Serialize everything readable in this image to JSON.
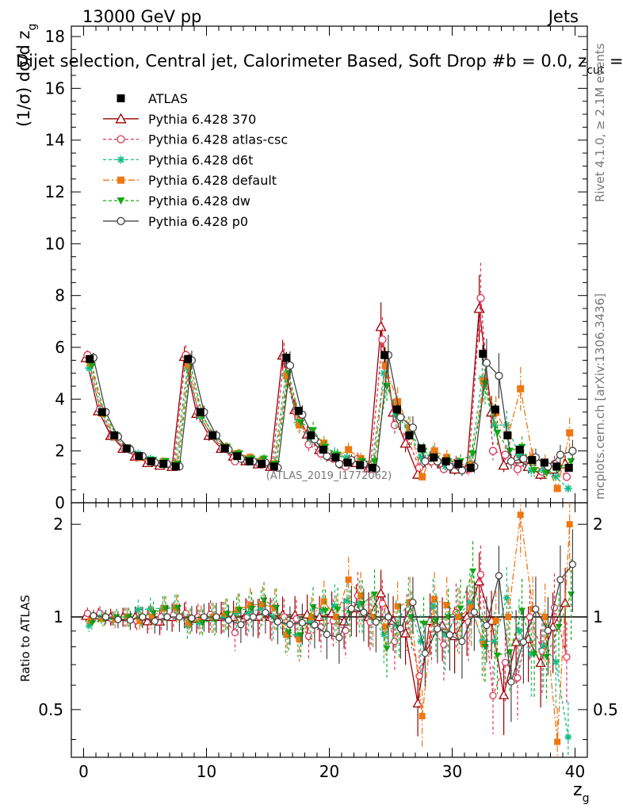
{
  "header": {
    "energy": "13000 GeV pp",
    "category": "Jets",
    "plot_title": "Dijet selection, Central jet, Calorimeter Based, Soft Drop #b = 0.0, z",
    "plot_title_sub": "cut",
    "plot_title_end": " =",
    "y_label": "(1/σ) dσ/d z",
    "y_label_sub": "g",
    "ratio_label": "Ratio to ATLAS",
    "x_label": "z",
    "x_label_sub": "g",
    "rivet_label": "Rivet 4.1.0, ≥ 2.1M events",
    "mcplots_label": "mcplots.cern.ch [arXiv:1306.3436]",
    "analysis_id": "(ATLAS_2019_I1772062)"
  },
  "chart_data": {
    "type": "line",
    "x": [
      0.5,
      1.5,
      2.5,
      3.5,
      4.5,
      5.5,
      6.5,
      7.5,
      8.5,
      9.5,
      10.5,
      11.5,
      12.5,
      13.5,
      14.5,
      15.5,
      16.5,
      17.5,
      18.5,
      19.5,
      20.5,
      21.5,
      22.5,
      23.5,
      24.5,
      25.5,
      26.5,
      27.5,
      28.5,
      29.5,
      30.5,
      31.5,
      32.5,
      33.5,
      34.5,
      35.5,
      36.5,
      37.5,
      38.5,
      39.5
    ],
    "xlim": [
      -1,
      41
    ],
    "ylim": [
      0,
      18.4
    ],
    "ratio_ylim": [
      0.35,
      2.35
    ],
    "x_ticks": [
      0,
      10,
      20,
      30,
      40
    ],
    "x_tick_labels": [
      "0",
      "10",
      "20",
      "30",
      "40"
    ],
    "y_ticks": [
      0,
      2,
      4,
      6,
      8,
      10,
      12,
      14,
      16,
      18
    ],
    "y_tick_labels": [
      "0",
      "2",
      "4",
      "6",
      "8",
      "10",
      "12",
      "14",
      "16",
      "18"
    ],
    "ratio_ticks": [
      0.5,
      1,
      2
    ],
    "ratio_tick_labels": [
      "0.5",
      "1",
      "2"
    ],
    "reference": {
      "name": "ATLAS",
      "color": "#000000",
      "values": [
        5.55,
        3.5,
        2.6,
        2.1,
        1.8,
        1.6,
        1.5,
        1.4,
        5.55,
        3.5,
        2.6,
        2.1,
        1.8,
        1.6,
        1.5,
        1.4,
        5.6,
        3.55,
        2.6,
        2.05,
        1.75,
        1.55,
        1.45,
        1.35,
        5.7,
        3.6,
        2.6,
        2.1,
        1.75,
        1.6,
        1.5,
        1.35,
        5.75,
        3.6,
        2.6,
        2.05,
        1.65,
        1.55,
        1.4,
        1.35
      ]
    },
    "series": [
      {
        "name": "Pythia 6.428 370",
        "color": "#990000",
        "dash": "",
        "marker": "triangle-open",
        "values": [
          5.6,
          3.55,
          2.6,
          2.1,
          1.8,
          1.55,
          1.45,
          1.4,
          5.65,
          3.45,
          2.6,
          2.1,
          1.8,
          1.62,
          1.5,
          1.4,
          5.7,
          3.6,
          2.65,
          2.05,
          1.8,
          1.5,
          1.55,
          1.35,
          6.8,
          3.5,
          2.3,
          1.1,
          1.7,
          1.5,
          1.3,
          1.35,
          7.5,
          3.5,
          1.45,
          1.7,
          1.4,
          1.1,
          1.3,
          1.5
        ]
      },
      {
        "name": "Pythia 6.428 atlas-csc",
        "color": "#dd3355",
        "dash": "4,3",
        "marker": "circle-open",
        "values": [
          5.7,
          3.6,
          2.55,
          2.1,
          1.75,
          1.6,
          1.5,
          1.42,
          5.7,
          3.5,
          2.65,
          2.1,
          1.6,
          1.6,
          1.5,
          1.38,
          5.6,
          3.5,
          2.25,
          1.9,
          1.7,
          1.4,
          1.7,
          1.3,
          6.3,
          3.0,
          2.55,
          1.35,
          1.6,
          1.3,
          1.55,
          1.3,
          7.9,
          2.0,
          1.85,
          1.3,
          1.65,
          1.2,
          1.5,
          1.0
        ]
      },
      {
        "name": "Pythia 6.428 d6t",
        "color": "#11bb88",
        "dash": "4,3",
        "marker": "star",
        "values": [
          5.2,
          3.5,
          2.55,
          2.1,
          1.9,
          1.7,
          1.6,
          1.5,
          5.2,
          3.35,
          2.6,
          2.1,
          1.85,
          1.65,
          1.6,
          1.4,
          4.9,
          3.1,
          2.5,
          2.15,
          1.9,
          1.75,
          1.6,
          1.35,
          5.0,
          3.4,
          2.9,
          1.75,
          1.9,
          1.4,
          1.5,
          1.5,
          4.8,
          3.0,
          3.0,
          1.85,
          1.25,
          1.25,
          1.0,
          0.55
        ]
      },
      {
        "name": "Pythia 6.428 default",
        "color": "#ee7711",
        "dash": "8,3,2,3",
        "marker": "square",
        "values": [
          5.4,
          3.45,
          2.55,
          2.1,
          1.75,
          1.6,
          1.6,
          1.5,
          5.3,
          3.45,
          2.6,
          2.15,
          1.9,
          1.75,
          1.65,
          1.5,
          4.9,
          3.0,
          2.6,
          2.3,
          1.75,
          2.05,
          1.7,
          1.35,
          5.3,
          3.9,
          2.9,
          1.0,
          2.0,
          1.75,
          1.5,
          1.45,
          4.7,
          3.5,
          2.6,
          4.4,
          1.75,
          1.55,
          0.55,
          2.7
        ]
      },
      {
        "name": "Pythia 6.428 dw",
        "color": "#11aa11",
        "dash": "4,3",
        "marker": "triangle-down",
        "values": [
          5.3,
          3.45,
          2.6,
          2.1,
          1.8,
          1.65,
          1.6,
          1.5,
          5.4,
          3.35,
          2.55,
          2.15,
          1.9,
          1.7,
          1.7,
          1.5,
          5.0,
          3.1,
          2.8,
          2.15,
          1.85,
          1.6,
          1.6,
          1.6,
          4.5,
          3.3,
          2.6,
          2.0,
          1.7,
          1.6,
          1.6,
          1.9,
          4.6,
          2.7,
          2.0,
          2.15,
          1.25,
          1.15,
          1.3,
          1.6
        ]
      },
      {
        "name": "Pythia 6.428 p0",
        "color": "#444444",
        "dash": "",
        "marker": "circle-open",
        "values": [
          5.6,
          3.5,
          2.55,
          2.05,
          1.8,
          1.55,
          1.5,
          1.4,
          5.5,
          3.5,
          2.6,
          2.05,
          1.7,
          1.6,
          1.55,
          1.35,
          5.3,
          3.4,
          2.45,
          1.8,
          1.5,
          1.65,
          1.5,
          1.3,
          5.7,
          3.3,
          2.9,
          1.6,
          1.6,
          1.4,
          1.25,
          1.4,
          5.4,
          4.9,
          1.6,
          1.7,
          1.75,
          1.4,
          1.85,
          2.0
        ]
      }
    ]
  }
}
